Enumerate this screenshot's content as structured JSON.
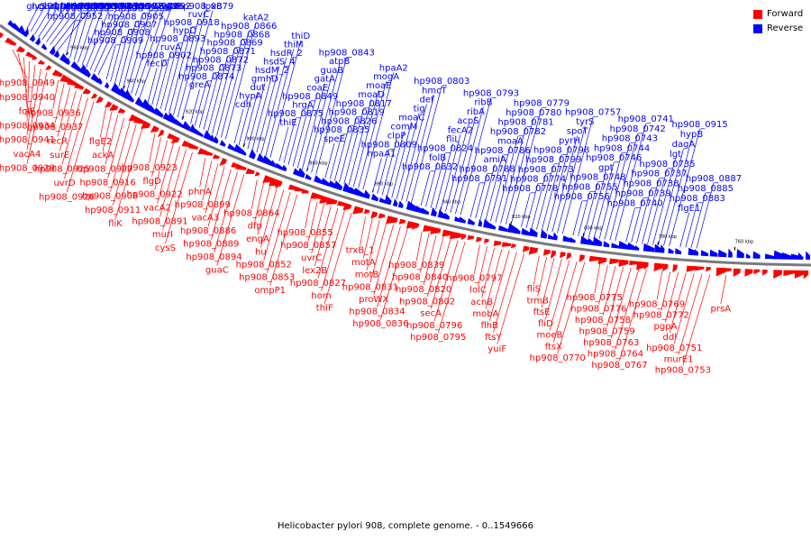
{
  "legend": {
    "forward_label": "Forward",
    "reverse_label": "Reverse",
    "forward_color": "#ff0000",
    "reverse_color": "#0000ff"
  },
  "caption": "Helicobacter pylori 908, complete genome. - 0..1549666",
  "tick_labels": [
    "960 kbp",
    "940 kbp",
    "920 kbp",
    "900 kbp",
    "880 kbp",
    "860 kbp",
    "840 kbp",
    "820 kbp",
    "800 kbp",
    "780 kbp",
    "760 kbp"
  ],
  "reverse_genes": [
    "glyS",
    "nccB",
    "glyQ",
    "accD",
    "rlmH",
    "alr",
    "proP",
    "hp908_0958",
    "hp908_0953",
    "hp908_0952",
    "hp908_0950",
    "carB",
    "hp908_0931",
    "hp908_0930",
    "hp908_0928",
    "hp908_0938",
    "hp908_0933",
    "hp908_0910",
    "hp908_0909",
    "hp908_0908",
    "hp908_0907",
    "hp908_0905",
    "hp908_0904",
    "hp908_0903",
    "hp908_0896",
    "hp908_0892",
    "hypC",
    "fecD",
    "hp908_0902",
    "ruvA",
    "hp908_0893",
    "hypD",
    "hp908_0918",
    "ruvC",
    "hp908_0879",
    "lpxB",
    "greA",
    "hp908_0874",
    "hp908_0873",
    "hp908_0872",
    "hp908_0871",
    "hp908_0869",
    "hp908_0868",
    "hp908_0866",
    "katA2",
    "cdh",
    "hypA",
    "dut",
    "gmhD",
    "hsdM_2",
    "hsdS_4",
    "hsdR_2",
    "thiM",
    "thiD",
    "thiE",
    "hp908_0875",
    "hrgA",
    "hp908_0849",
    "coaE",
    "gatA",
    "guaB",
    "atpB",
    "hp908_0843",
    "speE",
    "hp908_0835",
    "hp908_0826",
    "hp908_0819",
    "hp908_0817",
    "moaD",
    "moaE",
    "mogA",
    "hpaA2",
    "hpaA1",
    "hp908_0809",
    "clpP",
    "comM",
    "moaC",
    "tig",
    "def",
    "hmcT",
    "hp908_0803",
    "hp908_0832",
    "folB",
    "hp908_0824",
    "fliL",
    "fecA2",
    "acpS",
    "ribA",
    "ribB",
    "hp908_0793",
    "hp908_0791",
    "hp908_0788",
    "amiA",
    "hp908_0786",
    "moaA",
    "hp908_0782",
    "hp908_0781",
    "hp908_0780",
    "hp908_0779",
    "hp908_0778",
    "hp908_0774",
    "hp908_0773",
    "hp908_0799",
    "hp908_0798",
    "pyrH",
    "spoT",
    "tyrS",
    "hp908_0757",
    "hp908_0756",
    "hp908_0755",
    "hp908_0748",
    "gpt",
    "hp908_0746",
    "hp908_0744",
    "hp908_0743",
    "hp908_0742",
    "hp908_0741",
    "hp908_0740",
    "hp908_0739",
    "hp908_0738",
    "hp908_0737",
    "hp908_0735",
    "lgt",
    "dagA",
    "hypB",
    "hp908_0915",
    "flgE1",
    "hp908_0883",
    "hp908_0885",
    "hp908_0887"
  ],
  "forward_genes": [
    "hp908_0949",
    "hp908_0940",
    "folE",
    "hp908_0934",
    "hp908_0941",
    "vacA4",
    "hp908_0929",
    "hp908_0936",
    "hp908_0937",
    "recR",
    "surE",
    "hp908_0925",
    "uvrD",
    "hp908_0926",
    "flgE2",
    "ackA",
    "hp908_0927",
    "hp908_0916",
    "hp908_0906",
    "hp908_0911",
    "fliK",
    "hp908_0923",
    "flgD",
    "hp908_0922",
    "vacA2",
    "hp908_0891",
    "murI",
    "cysS",
    "phnA",
    "hp908_0899",
    "vacA3",
    "hp908_0886",
    "hp908_0889",
    "hp908_0894",
    "guaC",
    "hp908_0864",
    "dfp",
    "engA",
    "hu",
    "hp908_0852",
    "hp908_0853",
    "ompP1",
    "hp908_0855",
    "hp908_0857",
    "uvrC",
    "lex2B",
    "hp908_0827",
    "hom",
    "thiF",
    "trxB_1",
    "motA",
    "motB",
    "hp908_0831",
    "proWX",
    "hp908_0834",
    "hp908_0836",
    "hp908_0839",
    "hp908_0840",
    "hp908_0820",
    "hp908_0802",
    "secA",
    "hp908_0796",
    "hp908_0795",
    "hp908_0797",
    "lolC",
    "acnB",
    "mobA",
    "flhB",
    "ftsY",
    "yuiF",
    "fliS",
    "trmB",
    "ftsE",
    "fliD",
    "moeB",
    "ftsX",
    "hp908_0770",
    "hp908_0775",
    "hp908_0776",
    "hp908_0758",
    "hp908_0759",
    "hp908_0763",
    "hp908_0764",
    "hp908_0767",
    "hp908_0769",
    "hp908_0772",
    "pgpA",
    "ddl",
    "hp908_0751",
    "murE1",
    "hp908_0753",
    "prsA"
  ]
}
